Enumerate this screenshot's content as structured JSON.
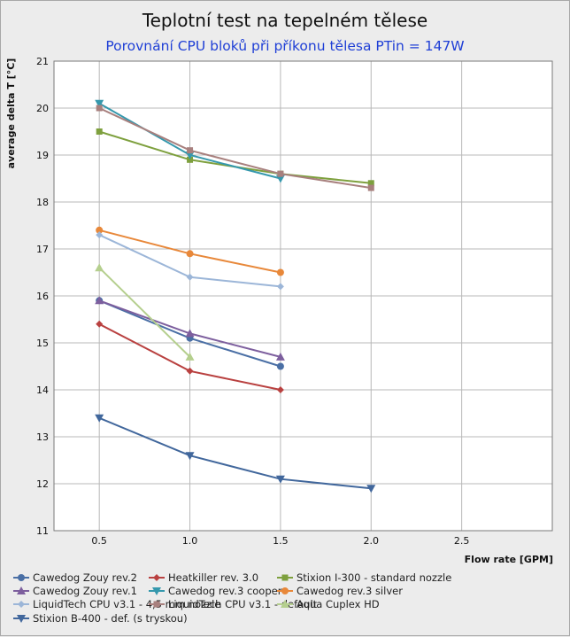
{
  "chart_data": {
    "type": "line",
    "title": "Teplotní test na tepelném tělese",
    "subtitle": "Porovnání CPU bloků při příkonu tělesa PTin = 147W",
    "xlabel": "Flow rate [GPM]",
    "ylabel": "average delta T [°C]",
    "xlim": [
      0.25,
      3.0
    ],
    "ylim": [
      11,
      21
    ],
    "x_ticks": [
      0.5,
      1.0,
      1.5,
      2.0,
      2.5
    ],
    "x_tick_labels": [
      "0.5",
      "1.0",
      "1.5",
      "2.0",
      "2.5"
    ],
    "y_ticks": [
      11,
      12,
      13,
      14,
      15,
      16,
      17,
      18,
      19,
      20,
      21
    ],
    "y_tick_labels": [
      "11",
      "12",
      "13",
      "14",
      "15",
      "16",
      "17",
      "18",
      "19",
      "20",
      "21"
    ],
    "grid": true,
    "legend_position": "bottom",
    "series": [
      {
        "name": "Cawedog Zouy rev.2",
        "color": "#4a6fa5",
        "marker": "circle",
        "x": [
          0.5,
          1.0,
          1.5
        ],
        "y": [
          15.9,
          15.1,
          14.5
        ]
      },
      {
        "name": "Heatkiller rev. 3.0",
        "color": "#b94140",
        "marker": "diamond",
        "x": [
          0.5,
          1.0,
          1.5
        ],
        "y": [
          15.4,
          14.4,
          14.0
        ]
      },
      {
        "name": "Stixion I-300 - standard nozzle",
        "color": "#7ea03e",
        "marker": "square",
        "x": [
          0.5,
          1.0,
          1.5,
          2.0
        ],
        "y": [
          19.5,
          18.9,
          18.6,
          18.4
        ]
      },
      {
        "name": "Cawedog Zouy rev.1",
        "color": "#7d5f9e",
        "marker": "triangle-up",
        "x": [
          0.5,
          1.0,
          1.5
        ],
        "y": [
          15.9,
          15.2,
          14.7
        ]
      },
      {
        "name": "Cawedog rev.3 cooper",
        "color": "#3598ad",
        "marker": "triangle-down",
        "x": [
          0.5,
          1.0,
          1.5
        ],
        "y": [
          20.1,
          19.0,
          18.5
        ]
      },
      {
        "name": "Cawedog rev.3 silver",
        "color": "#e8883a",
        "marker": "circle",
        "x": [
          0.5,
          1.0,
          1.5
        ],
        "y": [
          17.4,
          16.9,
          16.5
        ]
      },
      {
        "name": "LiquidTech CPU v3.1 - 4,5 mm nozzle",
        "color": "#9cb6d8",
        "marker": "diamond",
        "x": [
          0.5,
          1.0,
          1.5
        ],
        "y": [
          17.3,
          16.4,
          16.2
        ]
      },
      {
        "name": "LiquidTech CPU v3.1 - default",
        "color": "#a8807e",
        "marker": "square",
        "x": [
          0.5,
          1.0,
          1.5,
          2.0
        ],
        "y": [
          20.0,
          19.1,
          18.6,
          18.3
        ]
      },
      {
        "name": "Aqua Cuplex HD",
        "color": "#b5cf8e",
        "marker": "triangle-up",
        "x": [
          0.5,
          1.0
        ],
        "y": [
          16.6,
          14.7
        ]
      },
      {
        "name": "Stixion B-400 - def. (s tryskou)",
        "color": "#41679c",
        "marker": "triangle-down",
        "x": [
          0.5,
          1.0,
          1.5,
          2.0
        ],
        "y": [
          13.4,
          12.6,
          12.1,
          11.9
        ]
      }
    ]
  }
}
